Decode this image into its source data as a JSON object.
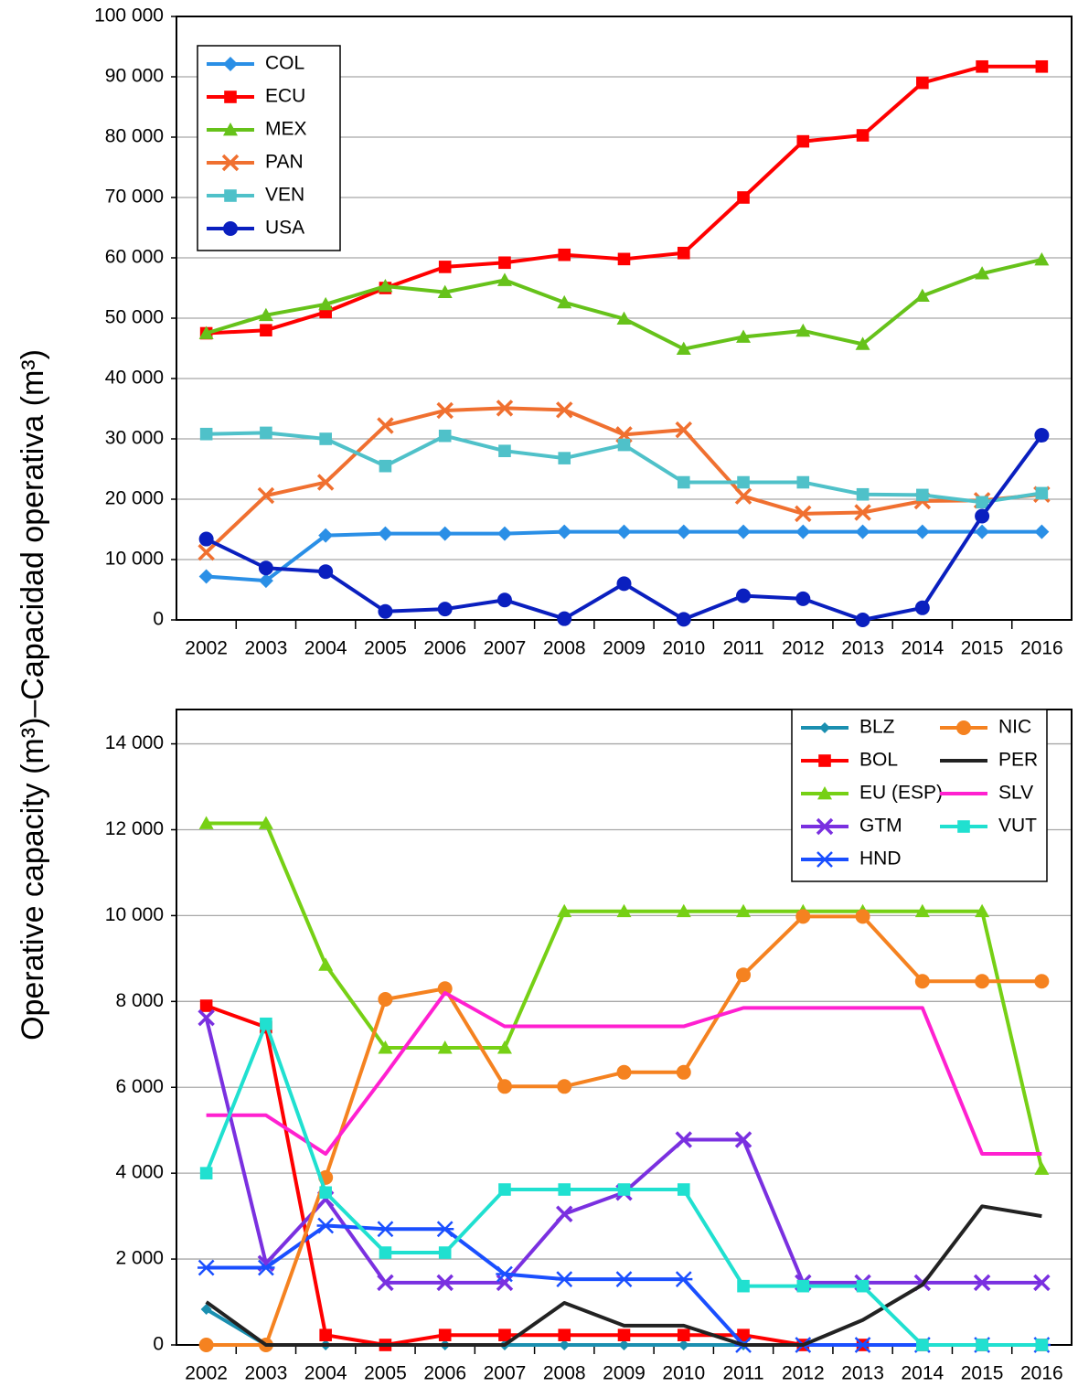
{
  "chart_data": [
    {
      "type": "line",
      "ylabel": "Operative capacity (m³)–Capacidad operativa (m³)",
      "categories": [
        "2002",
        "2003",
        "2004",
        "2005",
        "2006",
        "2007",
        "2008",
        "2009",
        "2010",
        "2011",
        "2012",
        "2013",
        "2014",
        "2015",
        "2016"
      ],
      "ylim": [
        0,
        100000
      ],
      "yticks": [
        0,
        {
          "value": 10000,
          "label": "10 000"
        },
        {
          "value": 20000,
          "label": "20 000"
        },
        {
          "value": 30000,
          "label": "30 000"
        },
        {
          "value": 40000,
          "label": "40 000"
        },
        {
          "value": 50000,
          "label": "50 000"
        },
        {
          "value": 60000,
          "label": "60 000"
        },
        {
          "value": 70000,
          "label": "70 000"
        },
        {
          "value": 80000,
          "label": "80 000"
        },
        {
          "value": 90000,
          "label": "90 000"
        },
        {
          "value": 100000,
          "label": "100 000"
        }
      ],
      "grid": true,
      "legend": "upper left",
      "series": [
        {
          "name": "COL",
          "color": "#2a8fe6",
          "marker": "diamond",
          "values": [
            7200,
            6500,
            14000,
            14300,
            14300,
            14300,
            14600,
            14600,
            14600,
            14600,
            14600,
            14600,
            14600,
            14600,
            14600
          ]
        },
        {
          "name": "ECU",
          "color": "#ff0000",
          "marker": "square",
          "values": [
            47500,
            48000,
            51000,
            55000,
            58500,
            59200,
            60500,
            59800,
            60800,
            70000,
            79300,
            80300,
            89000,
            91700,
            91700
          ]
        },
        {
          "name": "MEX",
          "color": "#66c21a",
          "marker": "triangle",
          "values": [
            47500,
            50500,
            52300,
            55300,
            54300,
            56300,
            52600,
            49900,
            44900,
            46900,
            47900,
            45700,
            53700,
            57400,
            59700
          ]
        },
        {
          "name": "PAN",
          "color": "#f07030",
          "marker": "x",
          "values": [
            11200,
            20600,
            22800,
            32200,
            34700,
            35100,
            34800,
            30700,
            31500,
            20500,
            17600,
            17800,
            19700,
            19800,
            20800
          ]
        },
        {
          "name": "VEN",
          "color": "#4fc1c9",
          "marker": "square",
          "values": [
            30800,
            31000,
            30000,
            25500,
            30500,
            28000,
            26800,
            29000,
            22800,
            22800,
            22800,
            20800,
            20700,
            19500,
            21000
          ]
        },
        {
          "name": "USA",
          "color": "#0a1fbf",
          "marker": "circle",
          "values": [
            13400,
            8600,
            8000,
            1400,
            1800,
            3300,
            200,
            6000,
            100,
            4000,
            3500,
            0,
            2000,
            17200,
            30600
          ]
        }
      ]
    },
    {
      "type": "line",
      "categories": [
        "2002",
        "2003",
        "2004",
        "2005",
        "2006",
        "2007",
        "2008",
        "2009",
        "2010",
        "2011",
        "2012",
        "2013",
        "2014",
        "2015",
        "2016"
      ],
      "ylim": [
        0,
        14800
      ],
      "yticks": [
        0,
        {
          "value": 2000,
          "label": "2 000"
        },
        {
          "value": 4000,
          "label": "4 000"
        },
        {
          "value": 6000,
          "label": "6 000"
        },
        {
          "value": 8000,
          "label": "8 000"
        },
        {
          "value": 10000,
          "label": "10 000"
        },
        {
          "value": 12000,
          "label": "12 000"
        },
        {
          "value": 14000,
          "label": "14 000"
        }
      ],
      "grid": true,
      "legend": "upper right",
      "series": [
        {
          "name": "BLZ",
          "color": "#1a8fb0",
          "marker": "diamond",
          "values": [
            830,
            0,
            0,
            0,
            0,
            0,
            0,
            0,
            0,
            0,
            0,
            0,
            0,
            0,
            0
          ]
        },
        {
          "name": "BOL",
          "color": "#ff0000",
          "marker": "square",
          "values": [
            7900,
            7400,
            230,
            0,
            230,
            230,
            230,
            230,
            230,
            230,
            0,
            0,
            0,
            0,
            0
          ]
        },
        {
          "name": "EU (ESP)",
          "color": "#76d015",
          "marker": "triangle",
          "values": [
            12150,
            12150,
            8850,
            6920,
            6920,
            6920,
            10100,
            10100,
            10100,
            10100,
            10100,
            10100,
            10100,
            10100,
            4100
          ]
        },
        {
          "name": "GTM",
          "color": "#7a30e0",
          "marker": "x",
          "values": [
            7620,
            1900,
            3400,
            1450,
            1450,
            1450,
            3050,
            3550,
            4780,
            4780,
            1450,
            1450,
            1450,
            1450,
            1450
          ]
        },
        {
          "name": "HND",
          "color": "#1a4fff",
          "marker": "asterisk",
          "values": [
            1800,
            1800,
            2780,
            2700,
            2700,
            1650,
            1530,
            1530,
            1530,
            0,
            0,
            0,
            0,
            0,
            0
          ]
        },
        {
          "name": "NIC",
          "color": "#f58220",
          "marker": "circle",
          "values": [
            0,
            0,
            3900,
            8050,
            8300,
            6020,
            6020,
            6350,
            6350,
            8620,
            9980,
            9980,
            8470,
            8470,
            8470
          ]
        },
        {
          "name": "PER",
          "color": "#222222",
          "marker": "none",
          "values": [
            1000,
            0,
            0,
            0,
            0,
            0,
            980,
            450,
            450,
            0,
            0,
            580,
            1400,
            3230,
            3000
          ]
        },
        {
          "name": "SLV",
          "color": "#ff20d0",
          "marker": "none",
          "values": [
            5350,
            5350,
            4450,
            6300,
            8200,
            7420,
            7420,
            7420,
            7420,
            7850,
            7850,
            7850,
            7850,
            4450,
            4450
          ]
        },
        {
          "name": "VUT",
          "color": "#20e0d0",
          "marker": "square",
          "values": [
            4000,
            7480,
            3550,
            2150,
            2150,
            3620,
            3620,
            3620,
            3620,
            1370,
            1370,
            1370,
            0,
            0,
            0
          ]
        }
      ]
    }
  ]
}
